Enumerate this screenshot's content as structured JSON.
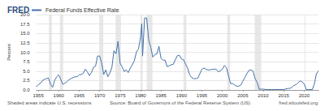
{
  "chart_data": {
    "type": "line",
    "logo": "FRED",
    "title": "Federal Funds Effective Rate",
    "y_label": "Percent",
    "note": "Shaded areas indicate U.S. recessions",
    "source": "Source: Board of Governors of the Federal Reserve System (US)",
    "site": "fred.stlouisfed.org",
    "color": "#4572a7",
    "grid": true,
    "xlim": [
      1954.5,
      2023.5
    ],
    "xticks": [
      1955,
      1960,
      1965,
      1970,
      1975,
      1980,
      1985,
      1990,
      1995,
      2000,
      2005,
      2010,
      2015,
      2020
    ],
    "ylim": [
      0,
      20
    ],
    "yticks": [
      {
        "value": 0,
        "label": "0.0"
      },
      2.5,
      {
        "value": 5,
        "label": "5.0"
      },
      7.5,
      {
        "value": 10,
        "label": "10.0"
      },
      12.5,
      {
        "value": 15,
        "label": "15.0"
      },
      17.5,
      {
        "value": 20,
        "label": "20.0"
      }
    ],
    "recessions": [
      [
        1957.6,
        1958.3
      ],
      [
        1960.3,
        1961.1
      ],
      [
        1969.9,
        1970.9
      ],
      [
        1973.9,
        1975.2
      ],
      [
        1980.0,
        1980.5
      ],
      [
        1981.5,
        1982.9
      ],
      [
        1990.5,
        1991.2
      ],
      [
        2001.2,
        2001.9
      ],
      [
        2007.9,
        2009.5
      ],
      [
        2020.1,
        2020.3
      ]
    ],
    "x": [
      1954.5,
      1955.0,
      1955.5,
      1956.0,
      1956.5,
      1957.0,
      1957.5,
      1958.0,
      1958.5,
      1959.0,
      1959.5,
      1960.0,
      1960.5,
      1961.0,
      1961.5,
      1962.0,
      1962.5,
      1963.0,
      1963.5,
      1964.0,
      1964.5,
      1965.0,
      1965.5,
      1966.0,
      1966.5,
      1967.0,
      1967.5,
      1968.0,
      1968.5,
      1969.0,
      1969.5,
      1970.0,
      1970.5,
      1971.0,
      1971.5,
      1972.0,
      1972.5,
      1973.0,
      1973.5,
      1974.0,
      1974.5,
      1975.0,
      1975.5,
      1976.0,
      1976.5,
      1977.0,
      1977.5,
      1978.0,
      1978.5,
      1979.0,
      1979.5,
      1980.0,
      1980.3,
      1980.5,
      1981.0,
      1981.5,
      1982.0,
      1982.5,
      1983.0,
      1983.5,
      1984.0,
      1984.5,
      1985.0,
      1985.5,
      1986.0,
      1986.5,
      1987.0,
      1987.5,
      1988.0,
      1988.5,
      1989.0,
      1989.5,
      1990.0,
      1990.5,
      1991.0,
      1991.5,
      1992.0,
      1992.5,
      1993.0,
      1993.5,
      1994.0,
      1994.5,
      1995.0,
      1995.5,
      1996.0,
      1996.5,
      1997.0,
      1997.5,
      1998.0,
      1998.5,
      1999.0,
      1999.5,
      2000.0,
      2000.5,
      2001.0,
      2001.5,
      2002.0,
      2002.5,
      2003.0,
      2003.5,
      2004.0,
      2004.5,
      2005.0,
      2005.5,
      2006.0,
      2006.5,
      2007.0,
      2007.5,
      2008.0,
      2008.5,
      2009.0,
      2009.5,
      2010.0,
      2011.0,
      2012.0,
      2013.0,
      2014.0,
      2015.0,
      2016.0,
      2016.5,
      2017.0,
      2017.5,
      2018.0,
      2018.5,
      2019.0,
      2019.5,
      2020.0,
      2020.5,
      2021.0,
      2021.5,
      2022.0,
      2022.5,
      2023.0,
      2023.5
    ],
    "values": [
      0.8,
      1.4,
      1.7,
      2.5,
      2.8,
      3.0,
      3.2,
      1.5,
      0.7,
      2.5,
      3.5,
      4.0,
      2.8,
      1.5,
      1.8,
      2.2,
      2.7,
      3.0,
      3.3,
      3.5,
      3.5,
      4.0,
      4.1,
      4.4,
      5.5,
      4.8,
      3.8,
      4.6,
      6.0,
      6.3,
      9.0,
      9.0,
      7.2,
      4.1,
      5.3,
      3.5,
      4.5,
      6.0,
      10.4,
      9.6,
      12.9,
      7.1,
      6.1,
      4.9,
      5.3,
      4.6,
      5.8,
      6.7,
      7.8,
      10.1,
      10.9,
      14.0,
      17.6,
      9.0,
      19.1,
      19.1,
      13.2,
      11.3,
      8.7,
      9.4,
      9.6,
      11.6,
      8.4,
      7.9,
      7.9,
      6.2,
      6.4,
      6.7,
      6.8,
      8.0,
      9.1,
      9.2,
      8.2,
      8.0,
      6.9,
      5.8,
      4.0,
      3.3,
      3.0,
      3.0,
      3.1,
      4.3,
      5.5,
      5.8,
      5.5,
      5.3,
      5.3,
      5.5,
      5.5,
      5.5,
      4.8,
      5.1,
      5.5,
      6.5,
      5.9,
      3.8,
      1.7,
      1.7,
      1.3,
      1.0,
      1.0,
      1.3,
      2.3,
      3.3,
      4.3,
      5.2,
      5.3,
      5.0,
      3.0,
      2.0,
      0.2,
      0.2,
      0.2,
      0.1,
      0.1,
      0.1,
      0.1,
      0.1,
      0.4,
      0.4,
      0.7,
      1.2,
      1.4,
      1.9,
      2.4,
      2.1,
      1.6,
      0.1,
      0.1,
      0.1,
      0.1,
      1.7,
      4.3,
      5.1
    ]
  }
}
